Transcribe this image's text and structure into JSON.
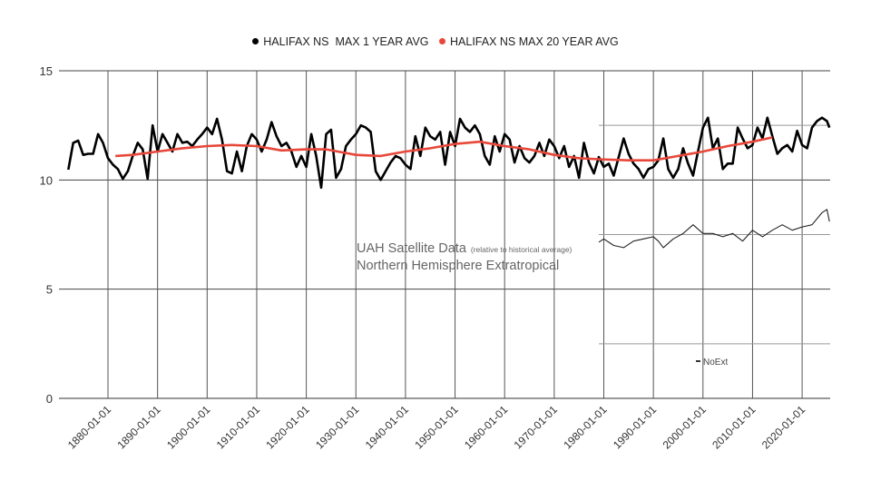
{
  "chart_data": {
    "type": "line",
    "title": "",
    "xlabel": "",
    "ylabel": "",
    "ylim": [
      0,
      15
    ],
    "yticks": [
      "0",
      "5",
      "10",
      "15"
    ],
    "xlim": [
      1871,
      2026
    ],
    "xticks": [
      "1880-01-01",
      "1890-01-01",
      "1900-01-01",
      "1910-01-01",
      "1920-01-01",
      "1930-01-01",
      "1940-01-01",
      "1950-01-01",
      "1960-01-01",
      "1970-01-01",
      "1980-01-01",
      "1990-01-01",
      "2000-01-01",
      "2010-01-01",
      "2020-01-01"
    ],
    "grid": true,
    "legend_position": "top",
    "series": [
      {
        "name": "HALIFAX NS  MAX 1 YEAR AVG",
        "color": "#000000",
        "points": [
          [
            1872,
            10.47
          ],
          [
            1873,
            11.7
          ],
          [
            1874,
            11.8
          ],
          [
            1875,
            11.15
          ],
          [
            1876,
            11.2
          ],
          [
            1877,
            11.2
          ],
          [
            1878,
            12.1
          ],
          [
            1879,
            11.7
          ],
          [
            1880,
            11.0
          ],
          [
            1881,
            10.7
          ],
          [
            1882,
            10.5
          ],
          [
            1883,
            10.05
          ],
          [
            1884,
            10.4
          ],
          [
            1885,
            11.1
          ],
          [
            1886,
            11.7
          ],
          [
            1887,
            11.4
          ],
          [
            1888,
            10.05
          ],
          [
            1889,
            12.5
          ],
          [
            1890,
            11.3
          ],
          [
            1891,
            12.1
          ],
          [
            1892,
            11.7
          ],
          [
            1893,
            11.3
          ],
          [
            1894,
            12.1
          ],
          [
            1895,
            11.7
          ],
          [
            1896,
            11.75
          ],
          [
            1897,
            11.55
          ],
          [
            1898,
            11.85
          ],
          [
            1899,
            12.1
          ],
          [
            1900,
            12.4
          ],
          [
            1901,
            12.1
          ],
          [
            1902,
            12.8
          ],
          [
            1903,
            11.85
          ],
          [
            1904,
            10.4
          ],
          [
            1905,
            10.3
          ],
          [
            1906,
            11.3
          ],
          [
            1907,
            10.4
          ],
          [
            1908,
            11.55
          ],
          [
            1909,
            12.1
          ],
          [
            1910,
            11.85
          ],
          [
            1911,
            11.3
          ],
          [
            1912,
            11.85
          ],
          [
            1913,
            12.65
          ],
          [
            1914,
            12.0
          ],
          [
            1915,
            11.55
          ],
          [
            1916,
            11.7
          ],
          [
            1917,
            11.3
          ],
          [
            1918,
            10.6
          ],
          [
            1919,
            11.1
          ],
          [
            1920,
            10.6
          ],
          [
            1921,
            12.1
          ],
          [
            1922,
            11.1
          ],
          [
            1923,
            9.65
          ],
          [
            1924,
            12.1
          ],
          [
            1925,
            12.3
          ],
          [
            1926,
            10.1
          ],
          [
            1927,
            10.5
          ],
          [
            1928,
            11.55
          ],
          [
            1929,
            11.85
          ],
          [
            1930,
            12.1
          ],
          [
            1931,
            12.5
          ],
          [
            1932,
            12.4
          ],
          [
            1933,
            12.2
          ],
          [
            1934,
            10.4
          ],
          [
            1935,
            10.0
          ],
          [
            1936,
            10.4
          ],
          [
            1937,
            10.8
          ],
          [
            1938,
            11.1
          ],
          [
            1939,
            11.0
          ],
          [
            1940,
            10.7
          ],
          [
            1941,
            10.5
          ],
          [
            1942,
            12.0
          ],
          [
            1943,
            11.1
          ],
          [
            1944,
            12.4
          ],
          [
            1945,
            12.0
          ],
          [
            1946,
            11.85
          ],
          [
            1947,
            12.2
          ],
          [
            1948,
            10.7
          ],
          [
            1949,
            12.2
          ],
          [
            1950,
            11.55
          ],
          [
            1951,
            12.8
          ],
          [
            1952,
            12.4
          ],
          [
            1953,
            12.2
          ],
          [
            1954,
            12.5
          ],
          [
            1955,
            12.1
          ],
          [
            1956,
            11.1
          ],
          [
            1957,
            10.7
          ],
          [
            1958,
            12.0
          ],
          [
            1959,
            11.3
          ],
          [
            1960,
            12.1
          ],
          [
            1961,
            11.85
          ],
          [
            1962,
            10.8
          ],
          [
            1963,
            11.55
          ],
          [
            1964,
            11.0
          ],
          [
            1965,
            10.8
          ],
          [
            1966,
            11.1
          ],
          [
            1967,
            11.7
          ],
          [
            1968,
            11.1
          ],
          [
            1969,
            11.85
          ],
          [
            1970,
            11.55
          ],
          [
            1971,
            11.0
          ],
          [
            1972,
            11.55
          ],
          [
            1973,
            10.6
          ],
          [
            1974,
            11.1
          ],
          [
            1975,
            10.1
          ],
          [
            1976,
            11.7
          ],
          [
            1977,
            10.8
          ],
          [
            1978,
            10.3
          ],
          [
            1979,
            11.05
          ],
          [
            1980,
            10.6
          ],
          [
            1981,
            10.75
          ],
          [
            1982,
            10.2
          ],
          [
            1983,
            11.05
          ],
          [
            1984,
            11.9
          ],
          [
            1985,
            11.2
          ],
          [
            1986,
            10.75
          ],
          [
            1987,
            10.5
          ],
          [
            1988,
            10.1
          ],
          [
            1989,
            10.5
          ],
          [
            1990,
            10.6
          ],
          [
            1991,
            10.9
          ],
          [
            1992,
            11.9
          ],
          [
            1993,
            10.5
          ],
          [
            1994,
            10.1
          ],
          [
            1995,
            10.5
          ],
          [
            1996,
            11.45
          ],
          [
            1997,
            10.75
          ],
          [
            1998,
            10.2
          ],
          [
            1999,
            11.3
          ],
          [
            2000,
            12.4
          ],
          [
            2001,
            12.85
          ],
          [
            2002,
            11.45
          ],
          [
            2003,
            11.9
          ],
          [
            2004,
            10.5
          ],
          [
            2005,
            10.75
          ],
          [
            2006,
            10.75
          ],
          [
            2007,
            12.4
          ],
          [
            2008,
            11.9
          ],
          [
            2009,
            11.45
          ],
          [
            2010,
            11.6
          ],
          [
            2011,
            12.4
          ],
          [
            2012,
            11.9
          ],
          [
            2013,
            12.85
          ],
          [
            2014,
            12.0
          ],
          [
            2015,
            11.2
          ],
          [
            2016,
            11.45
          ],
          [
            2017,
            11.6
          ],
          [
            2018,
            11.3
          ],
          [
            2019,
            12.25
          ],
          [
            2020,
            11.6
          ],
          [
            2021,
            11.45
          ],
          [
            2022,
            12.4
          ],
          [
            2023,
            12.7
          ],
          [
            2024,
            12.85
          ],
          [
            2025,
            12.7
          ],
          [
            2025.5,
            12.4
          ]
        ]
      },
      {
        "name": "HALIFAX NS MAX 20 YEAR AVG",
        "color": "#e8473a",
        "points": [
          [
            1881.5,
            11.1
          ],
          [
            1885,
            11.15
          ],
          [
            1890,
            11.3
          ],
          [
            1895,
            11.45
          ],
          [
            1900,
            11.55
          ],
          [
            1905,
            11.6
          ],
          [
            1910,
            11.55
          ],
          [
            1915,
            11.35
          ],
          [
            1920,
            11.4
          ],
          [
            1924,
            11.4
          ],
          [
            1930,
            11.15
          ],
          [
            1935,
            11.1
          ],
          [
            1940,
            11.3
          ],
          [
            1945,
            11.45
          ],
          [
            1950,
            11.65
          ],
          [
            1955,
            11.75
          ],
          [
            1960,
            11.55
          ],
          [
            1965,
            11.4
          ],
          [
            1970,
            11.15
          ],
          [
            1975,
            11.0
          ],
          [
            1979,
            10.95
          ],
          [
            1985,
            10.9
          ],
          [
            1990,
            10.9
          ],
          [
            1995,
            11.1
          ],
          [
            2000,
            11.3
          ],
          [
            2005,
            11.55
          ],
          [
            2010,
            11.75
          ],
          [
            2014,
            11.95
          ]
        ]
      },
      {
        "name": "NoExt",
        "color": "#222222",
        "points": [
          [
            1979,
            7.15
          ],
          [
            1980,
            7.3
          ],
          [
            1982,
            7.0
          ],
          [
            1984,
            6.9
          ],
          [
            1986,
            7.2
          ],
          [
            1988,
            7.3
          ],
          [
            1990,
            7.4
          ],
          [
            1991,
            7.2
          ],
          [
            1992,
            6.9
          ],
          [
            1994,
            7.3
          ],
          [
            1996,
            7.55
          ],
          [
            1998,
            7.95
          ],
          [
            2000,
            7.55
          ],
          [
            2002,
            7.55
          ],
          [
            2004,
            7.4
          ],
          [
            2006,
            7.55
          ],
          [
            2008,
            7.2
          ],
          [
            2010,
            7.7
          ],
          [
            2012,
            7.4
          ],
          [
            2014,
            7.7
          ],
          [
            2016,
            7.95
          ],
          [
            2018,
            7.7
          ],
          [
            2020,
            7.85
          ],
          [
            2022,
            7.95
          ],
          [
            2024,
            8.5
          ],
          [
            2025,
            8.65
          ],
          [
            2025.5,
            8.1
          ]
        ]
      }
    ],
    "annotations": {
      "uah_title": "UAH Satellite Data",
      "uah_note": "(relative to historical average)",
      "uah_subtitle": "Northern Hemisphere Extratropical"
    }
  }
}
